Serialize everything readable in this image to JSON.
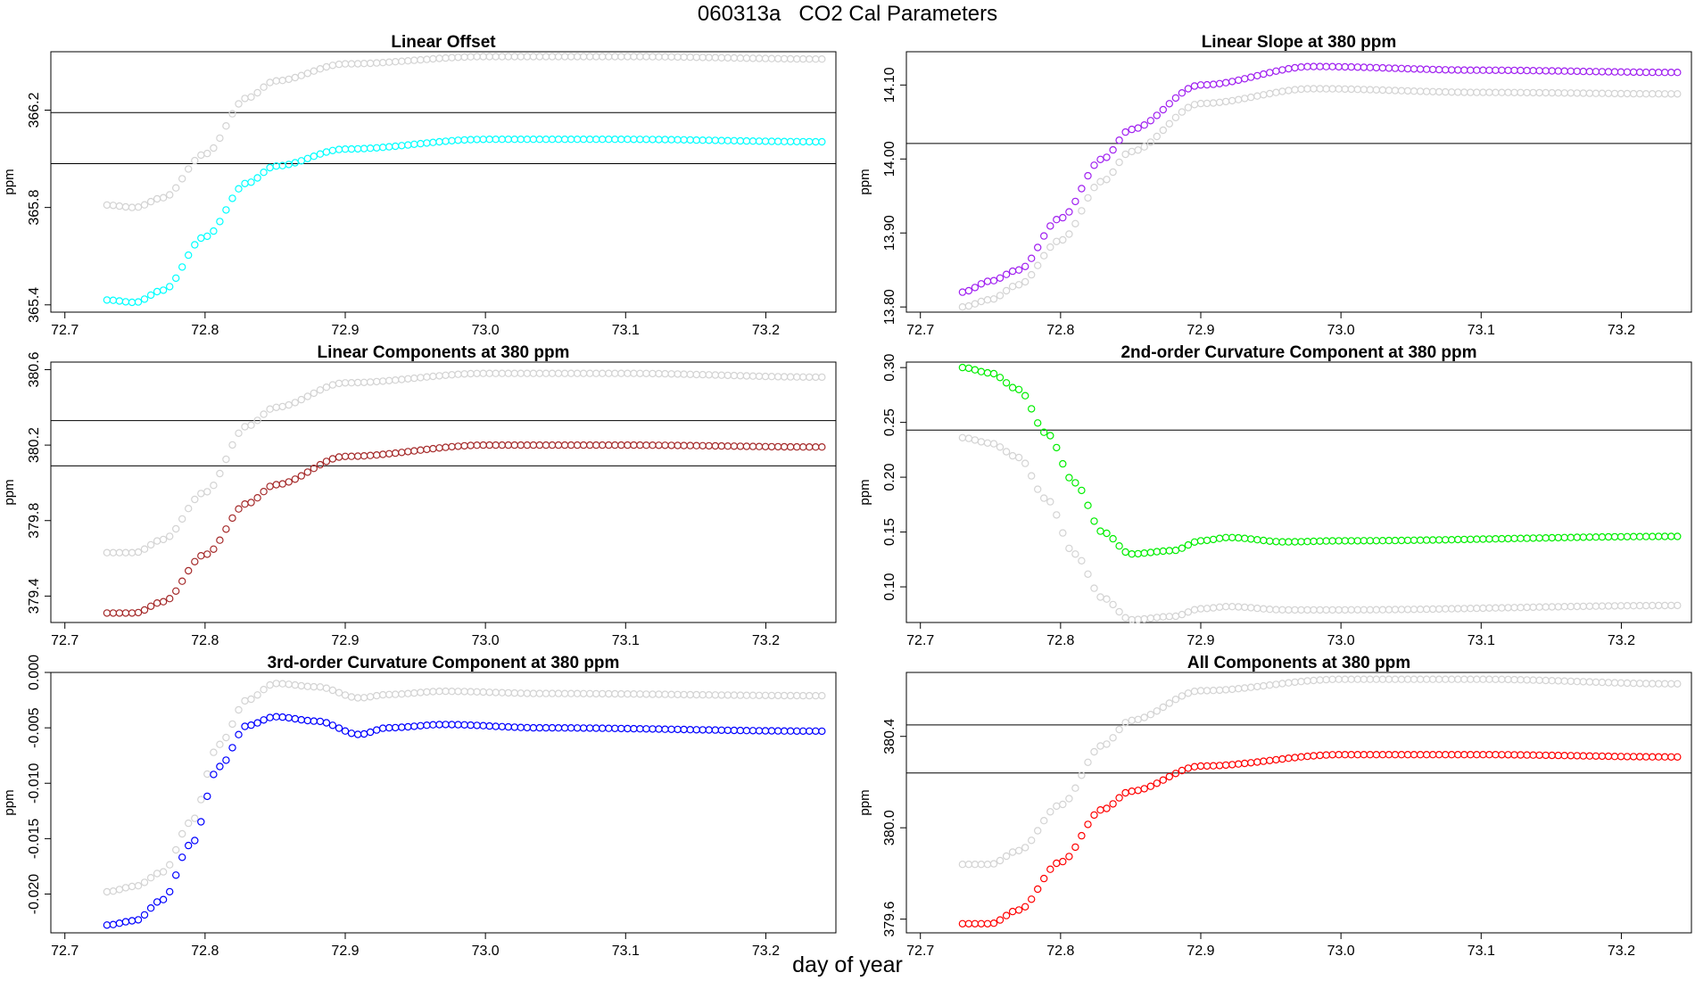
{
  "title": "060313a   CO2 Cal Parameters",
  "xlabel": "day of year",
  "colors": {
    "reference": "#d3d3d3",
    "cyan": "#00ffff",
    "purple": "#a020f0",
    "darkred": "#a52a2a",
    "green": "#00ee00",
    "blue": "#0000ff",
    "red": "#ff0000"
  },
  "chart_data": [
    {
      "type": "scatter",
      "title": "Linear Offset",
      "xlabel": "",
      "ylabel": "ppm",
      "xlim": [
        72.69,
        73.25
      ],
      "ylim": [
        365.37,
        366.44
      ],
      "xticks": [
        "72.7",
        "72.8",
        "72.9",
        "73.0",
        "73.1",
        "73.2"
      ],
      "yticks": [
        "365.4",
        "365.8",
        "366.2"
      ],
      "hlines": [
        366.19,
        365.98
      ],
      "series": [
        {
          "color": "reference",
          "x_start": 72.73,
          "x_end": 73.24,
          "keys": [
            [
              72.73,
              365.81
            ],
            [
              72.75,
              365.8
            ],
            [
              72.77,
              365.84
            ],
            [
              72.8,
              366.02
            ],
            [
              72.83,
              366.25
            ],
            [
              72.85,
              366.32
            ],
            [
              72.9,
              366.39
            ],
            [
              73.0,
              366.42
            ],
            [
              73.1,
              366.42
            ],
            [
              73.24,
              366.41
            ]
          ]
        },
        {
          "color": "cyan",
          "x_start": 72.73,
          "x_end": 73.24,
          "keys": [
            [
              72.73,
              365.42
            ],
            [
              72.75,
              365.41
            ],
            [
              72.77,
              365.46
            ],
            [
              72.8,
              365.68
            ],
            [
              72.83,
              365.9
            ],
            [
              72.85,
              365.97
            ],
            [
              72.9,
              366.04
            ],
            [
              73.0,
              366.08
            ],
            [
              73.1,
              366.08
            ],
            [
              73.24,
              366.07
            ]
          ]
        }
      ]
    },
    {
      "type": "scatter",
      "title": "Linear Slope at 380 ppm",
      "xlabel": "",
      "ylabel": "ppm",
      "xlim": [
        72.69,
        73.25
      ],
      "ylim": [
        13.793,
        14.145
      ],
      "xticks": [
        "72.7",
        "72.8",
        "72.9",
        "73.0",
        "73.1",
        "73.2"
      ],
      "yticks": [
        "13.80",
        "13.90",
        "14.00",
        "14.10"
      ],
      "hlines": [
        14.021
      ],
      "series": [
        {
          "color": "reference",
          "x_start": 72.73,
          "x_end": 73.24,
          "keys": [
            [
              72.73,
              13.8
            ],
            [
              72.75,
              13.81
            ],
            [
              72.77,
              13.83
            ],
            [
              72.8,
              13.89
            ],
            [
              72.83,
              13.97
            ],
            [
              72.85,
              14.01
            ],
            [
              72.9,
              14.075
            ],
            [
              72.98,
              14.095
            ],
            [
              73.1,
              14.09
            ],
            [
              73.24,
              14.088
            ]
          ]
        },
        {
          "color": "purple",
          "x_start": 72.73,
          "x_end": 73.24,
          "keys": [
            [
              72.73,
              13.82
            ],
            [
              72.75,
              13.835
            ],
            [
              72.77,
              13.85
            ],
            [
              72.8,
              13.92
            ],
            [
              72.83,
              14.0
            ],
            [
              72.85,
              14.04
            ],
            [
              72.9,
              14.1
            ],
            [
              72.98,
              14.125
            ],
            [
              73.1,
              14.12
            ],
            [
              73.24,
              14.117
            ]
          ]
        }
      ]
    },
    {
      "type": "scatter",
      "title": "Linear Components at 380 ppm",
      "xlabel": "",
      "ylabel": "ppm",
      "xlim": [
        72.69,
        73.25
      ],
      "ylim": [
        379.26,
        380.64
      ],
      "xticks": [
        "72.7",
        "72.8",
        "72.9",
        "73.0",
        "73.1",
        "73.2"
      ],
      "yticks": [
        "379.4",
        "379.8",
        "380.2",
        "380.6"
      ],
      "hlines": [
        380.33,
        380.09
      ],
      "series": [
        {
          "color": "reference",
          "x_start": 72.73,
          "x_end": 73.24,
          "keys": [
            [
              72.73,
              379.63
            ],
            [
              72.75,
              379.63
            ],
            [
              72.77,
              379.7
            ],
            [
              72.8,
              379.95
            ],
            [
              72.83,
              380.3
            ],
            [
              72.85,
              380.4
            ],
            [
              72.9,
              380.53
            ],
            [
              73.0,
              380.58
            ],
            [
              73.1,
              380.58
            ],
            [
              73.24,
              380.56
            ]
          ]
        },
        {
          "color": "darkred",
          "x_start": 72.73,
          "x_end": 73.24,
          "keys": [
            [
              72.73,
              379.31
            ],
            [
              72.75,
              379.31
            ],
            [
              72.77,
              379.37
            ],
            [
              72.8,
              379.62
            ],
            [
              72.83,
              379.89
            ],
            [
              72.85,
              379.99
            ],
            [
              72.9,
              380.14
            ],
            [
              73.0,
              380.2
            ],
            [
              73.1,
              380.2
            ],
            [
              73.24,
              380.19
            ]
          ]
        }
      ]
    },
    {
      "type": "scatter",
      "title": "2nd-order Curvature Component at 380 ppm",
      "xlabel": "",
      "ylabel": "ppm",
      "xlim": [
        72.69,
        73.25
      ],
      "ylim": [
        0.0675,
        0.305
      ],
      "xticks": [
        "72.7",
        "72.8",
        "72.9",
        "73.0",
        "73.1",
        "73.2"
      ],
      "yticks": [
        "0.10",
        "0.15",
        "0.20",
        "0.25",
        "0.30"
      ],
      "hlines": [
        0.243
      ],
      "series": [
        {
          "color": "reference",
          "x_start": 72.73,
          "x_end": 73.24,
          "keys": [
            [
              72.73,
              0.236
            ],
            [
              72.75,
              0.231
            ],
            [
              72.77,
              0.218
            ],
            [
              72.79,
              0.18
            ],
            [
              72.81,
              0.13
            ],
            [
              72.83,
              0.09
            ],
            [
              72.85,
              0.07
            ],
            [
              72.88,
              0.073
            ],
            [
              72.9,
              0.08
            ],
            [
              72.92,
              0.082
            ],
            [
              72.96,
              0.079
            ],
            [
              73.0,
              0.079
            ],
            [
              73.24,
              0.083
            ]
          ]
        },
        {
          "color": "green",
          "x_start": 72.73,
          "x_end": 73.24,
          "keys": [
            [
              72.73,
              0.3
            ],
            [
              72.75,
              0.295
            ],
            [
              72.77,
              0.28
            ],
            [
              72.79,
              0.24
            ],
            [
              72.81,
              0.195
            ],
            [
              72.83,
              0.15
            ],
            [
              72.85,
              0.13
            ],
            [
              72.88,
              0.133
            ],
            [
              72.9,
              0.142
            ],
            [
              72.92,
              0.145
            ],
            [
              72.96,
              0.141
            ],
            [
              73.0,
              0.142
            ],
            [
              73.24,
              0.146
            ]
          ]
        }
      ]
    },
    {
      "type": "scatter",
      "title": "3rd-order Curvature Component at 380 ppm",
      "xlabel": "",
      "ylabel": "ppm",
      "xlim": [
        72.69,
        73.25
      ],
      "ylim": [
        -0.0235,
        0.0
      ],
      "xticks": [
        "72.7",
        "72.8",
        "72.9",
        "73.0",
        "73.1",
        "73.2"
      ],
      "yticks": [
        "-0.020",
        "-0.015",
        "-0.010",
        "-0.005",
        "0.000"
      ],
      "hlines": [],
      "series": [
        {
          "color": "reference",
          "x_start": 72.73,
          "x_end": 73.24,
          "keys": [
            [
              72.73,
              -0.0198
            ],
            [
              72.75,
              -0.0193
            ],
            [
              72.77,
              -0.018
            ],
            [
              72.79,
              -0.0135
            ],
            [
              72.81,
              -0.0065
            ],
            [
              72.83,
              -0.0025
            ],
            [
              72.85,
              -0.001
            ],
            [
              72.88,
              -0.0013
            ],
            [
              72.91,
              -0.0023
            ],
            [
              72.93,
              -0.002
            ],
            [
              72.97,
              -0.0017
            ],
            [
              73.04,
              -0.0019
            ],
            [
              73.24,
              -0.0021
            ]
          ]
        },
        {
          "color": "blue",
          "x_start": 72.73,
          "x_end": 73.24,
          "keys": [
            [
              72.73,
              -0.0228
            ],
            [
              72.75,
              -0.0224
            ],
            [
              72.77,
              -0.0205
            ],
            [
              72.79,
              -0.0155
            ],
            [
              72.81,
              -0.0085
            ],
            [
              72.83,
              -0.0048
            ],
            [
              72.85,
              -0.004
            ],
            [
              72.88,
              -0.0044
            ],
            [
              72.91,
              -0.0056
            ],
            [
              72.93,
              -0.005
            ],
            [
              72.97,
              -0.0047
            ],
            [
              73.04,
              -0.005
            ],
            [
              73.24,
              -0.0053
            ]
          ]
        }
      ]
    },
    {
      "type": "scatter",
      "title": "All Components at 380 ppm",
      "xlabel": "",
      "ylabel": "ppm",
      "xlim": [
        72.69,
        73.25
      ],
      "ylim": [
        379.54,
        380.68
      ],
      "xticks": [
        "72.7",
        "72.8",
        "72.9",
        "73.0",
        "73.1",
        "73.2"
      ],
      "yticks": [
        "379.6",
        "380.0",
        "380.4"
      ],
      "hlines": [
        380.45,
        380.24
      ],
      "series": [
        {
          "color": "reference",
          "x_start": 72.73,
          "x_end": 73.24,
          "keys": [
            [
              72.73,
              379.84
            ],
            [
              72.75,
              379.84
            ],
            [
              72.77,
              379.9
            ],
            [
              72.8,
              380.1
            ],
            [
              72.83,
              380.36
            ],
            [
              72.85,
              380.47
            ],
            [
              72.9,
              380.6
            ],
            [
              73.0,
              380.65
            ],
            [
              73.1,
              380.65
            ],
            [
              73.24,
              380.63
            ]
          ]
        },
        {
          "color": "red",
          "x_start": 72.73,
          "x_end": 73.24,
          "keys": [
            [
              72.73,
              379.58
            ],
            [
              72.75,
              379.58
            ],
            [
              72.77,
              379.64
            ],
            [
              72.8,
              379.85
            ],
            [
              72.83,
              380.08
            ],
            [
              72.85,
              380.16
            ],
            [
              72.9,
              380.27
            ],
            [
              73.0,
              380.32
            ],
            [
              73.1,
              380.32
            ],
            [
              73.24,
              380.31
            ]
          ]
        }
      ]
    }
  ]
}
